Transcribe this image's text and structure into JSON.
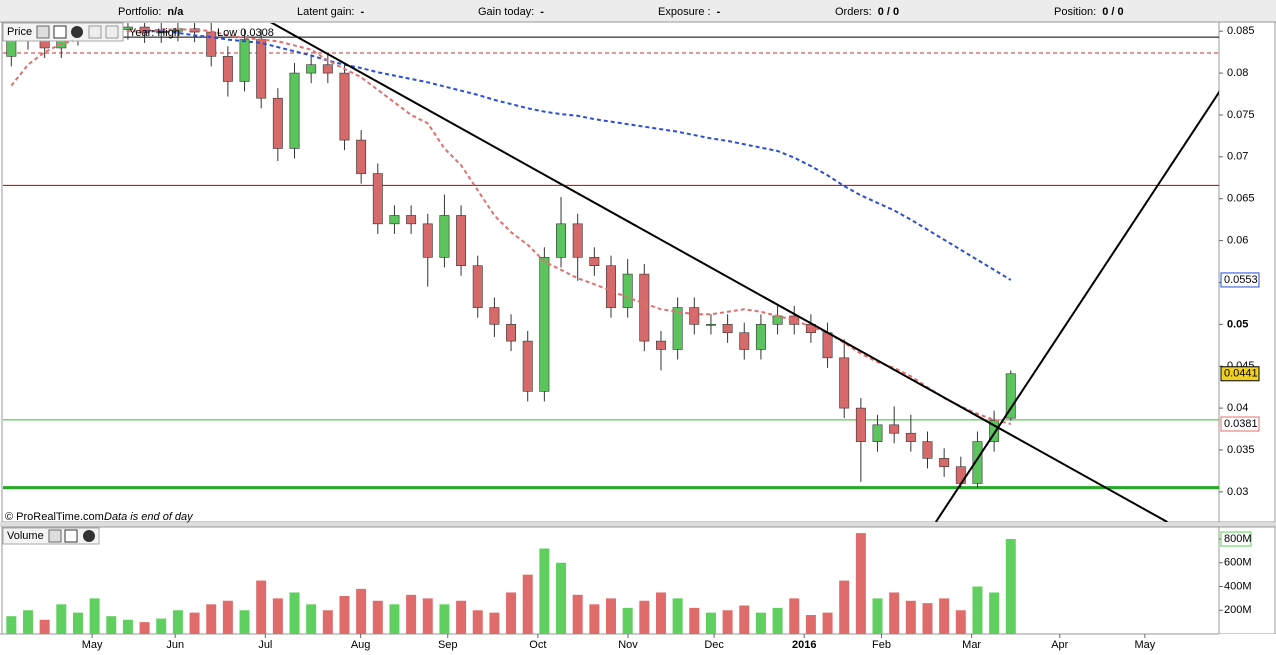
{
  "toolbar": {
    "items": [
      {
        "label": "Portfolio:",
        "value": "n/a"
      },
      {
        "label": "Latent gain:",
        "value": "-"
      },
      {
        "label": "Gain today:",
        "value": "-"
      },
      {
        "label": "Exposure :",
        "value": "-"
      },
      {
        "label": "Orders:",
        "value": "0 / 0"
      },
      {
        "label": "Position:",
        "value": "0 / 0"
      }
    ]
  },
  "price_panel": {
    "title": "Price",
    "legend": "Year: High",
    "legend_low": "Low 0.0308",
    "source": "© ProRealTime.com",
    "note": "Data is end of day"
  },
  "volume_panel": {
    "title": "Volume"
  },
  "chart_data": [
    {
      "type": "candlestick",
      "categories": [
        null,
        null,
        null,
        null,
        null,
        null,
        null,
        null,
        null,
        null,
        null,
        null,
        null,
        null,
        null,
        null,
        null,
        null,
        null,
        null,
        null,
        null,
        null,
        null,
        null,
        null,
        null,
        null,
        null,
        null,
        null,
        null,
        null,
        null,
        null,
        null,
        null,
        null,
        null,
        null,
        null,
        null,
        null,
        null,
        null,
        null,
        null,
        null,
        null,
        null,
        null,
        null,
        null,
        null,
        null,
        null,
        null,
        null,
        null,
        null,
        null
      ],
      "xlim": [
        0,
        73
      ],
      "xticks": [
        {
          "value": 5.35,
          "label": "May"
        },
        {
          "value": 10.34,
          "label": "Jun"
        },
        {
          "value": 15.75,
          "label": "Jul"
        },
        {
          "value": 21.47,
          "label": "Aug"
        },
        {
          "value": 26.7,
          "label": "Sep"
        },
        {
          "value": 32.11,
          "label": "Oct"
        },
        {
          "value": 37.52,
          "label": "Nov"
        },
        {
          "value": 42.69,
          "label": "Dec"
        },
        {
          "value": 48.1,
          "label": "2016"
        },
        {
          "value": 52.74,
          "label": "Feb"
        },
        {
          "value": 58.15,
          "label": "Mar"
        },
        {
          "value": 63.44,
          "label": "Apr"
        },
        {
          "value": 68.55,
          "label": "May"
        }
      ],
      "ylim": [
        0.0264,
        0.0861
      ],
      "yticks": [
        0.085,
        0.08,
        0.075,
        0.07,
        0.065,
        0.06,
        0.055,
        0.05,
        0.045,
        0.04,
        0.035,
        0.03
      ],
      "up_color": "#5cc45c",
      "down_color": "#d66a6a",
      "open": [
        0.082,
        0.084,
        0.0845,
        0.083,
        0.0845,
        0.085,
        0.085,
        0.0852,
        0.0855,
        0.0848,
        0.085,
        0.0853,
        0.0849,
        0.082,
        0.079,
        0.084,
        0.077,
        0.071,
        0.08,
        0.081,
        0.08,
        0.072,
        0.068,
        0.062,
        0.063,
        0.062,
        0.058,
        0.063,
        0.057,
        0.052,
        0.05,
        0.048,
        0.042,
        0.058,
        0.062,
        0.058,
        0.057,
        0.052,
        0.056,
        0.048,
        0.047,
        0.052,
        0.05,
        0.05,
        0.049,
        0.047,
        0.05,
        0.051,
        0.05,
        0.049,
        0.046,
        0.04,
        0.036,
        0.038,
        0.037,
        0.036,
        0.034,
        0.033,
        0.031,
        0.036,
        0.0388
      ],
      "high": [
        0.0852,
        0.0857,
        0.0857,
        0.0857,
        0.0862,
        0.0862,
        0.0864,
        0.0867,
        0.0867,
        0.0862,
        0.0865,
        0.0865,
        0.0861,
        0.0832,
        0.0852,
        0.0852,
        0.0782,
        0.0812,
        0.0822,
        0.0822,
        0.0812,
        0.0732,
        0.0692,
        0.0642,
        0.0642,
        0.0632,
        0.0655,
        0.0642,
        0.0582,
        0.0532,
        0.0512,
        0.0492,
        0.0592,
        0.0652,
        0.0632,
        0.0592,
        0.0582,
        0.0578,
        0.0572,
        0.0492,
        0.0532,
        0.0532,
        0.0512,
        0.0512,
        0.0502,
        0.0512,
        0.0522,
        0.0522,
        0.0512,
        0.0502,
        0.0482,
        0.0412,
        0.0392,
        0.0402,
        0.0392,
        0.0372,
        0.0352,
        0.0342,
        0.0372,
        0.0397,
        0.0445
      ],
      "low": [
        0.0808,
        0.0828,
        0.0818,
        0.0818,
        0.0833,
        0.0838,
        0.0838,
        0.084,
        0.0836,
        0.0836,
        0.0838,
        0.0837,
        0.0808,
        0.0772,
        0.0778,
        0.0758,
        0.0695,
        0.0698,
        0.0788,
        0.0788,
        0.0708,
        0.0668,
        0.0608,
        0.0608,
        0.0608,
        0.0545,
        0.0568,
        0.0558,
        0.0508,
        0.0485,
        0.0468,
        0.0408,
        0.0408,
        0.0568,
        0.0552,
        0.0558,
        0.0508,
        0.0508,
        0.0468,
        0.0445,
        0.0458,
        0.0488,
        0.0488,
        0.0478,
        0.0458,
        0.0458,
        0.0488,
        0.0488,
        0.0478,
        0.0448,
        0.0388,
        0.0312,
        0.0348,
        0.0358,
        0.0348,
        0.0328,
        0.0318,
        0.0305,
        0.0305,
        0.0348,
        0.0385
      ],
      "close": [
        0.084,
        0.0845,
        0.083,
        0.0845,
        0.085,
        0.085,
        0.0852,
        0.0855,
        0.0848,
        0.085,
        0.0853,
        0.0849,
        0.082,
        0.079,
        0.084,
        0.077,
        0.071,
        0.08,
        0.081,
        0.08,
        0.072,
        0.068,
        0.062,
        0.063,
        0.062,
        0.058,
        0.063,
        0.057,
        0.052,
        0.05,
        0.048,
        0.042,
        0.058,
        0.062,
        0.058,
        0.057,
        0.052,
        0.056,
        0.048,
        0.047,
        0.052,
        0.05,
        0.05,
        0.049,
        0.047,
        0.05,
        0.051,
        0.05,
        0.049,
        0.046,
        0.04,
        0.036,
        0.038,
        0.037,
        0.036,
        0.034,
        0.033,
        0.031,
        0.036,
        0.0385,
        0.0441
      ],
      "series": [
        {
          "color": "#2a4fd6",
          "values": [
            null,
            null,
            null,
            null,
            null,
            null,
            null,
            null,
            0.085,
            0.085,
            0.0848,
            0.0845,
            0.0843,
            0.084,
            0.0838,
            0.0836,
            0.0831,
            0.0826,
            0.0821,
            0.0815,
            0.081,
            0.0806,
            0.0801,
            0.0797,
            0.0793,
            0.0789,
            0.0784,
            0.0779,
            0.0774,
            0.0768,
            0.0763,
            0.0758,
            0.0754,
            0.0751,
            0.0749,
            0.0745,
            0.0742,
            0.0739,
            0.0736,
            0.0733,
            0.073,
            0.0726,
            0.0722,
            0.0719,
            0.0715,
            0.0711,
            0.0707,
            0.0699,
            0.0689,
            0.0678,
            0.0665,
            0.0654,
            0.0645,
            0.0636,
            0.0625,
            0.0613,
            0.0601,
            0.0589,
            0.0577,
            0.0565,
            0.0553
          ]
        },
        {
          "color": "#e07070",
          "values": [
            0.0785,
            0.081,
            0.0825,
            0.0835,
            0.084,
            0.0845,
            0.085,
            0.085,
            0.085,
            0.0852,
            0.0852,
            0.0852,
            0.085,
            0.0845,
            0.0842,
            0.084,
            0.0838,
            0.0833,
            0.0828,
            0.0815,
            0.0805,
            0.0795,
            0.078,
            0.0765,
            0.075,
            0.074,
            0.071,
            0.069,
            0.066,
            0.063,
            0.061,
            0.0595,
            0.0575,
            0.0565,
            0.0555,
            0.0548,
            0.054,
            0.0532,
            0.0525,
            0.0518,
            0.0515,
            0.0512,
            0.0512,
            0.0515,
            0.0518,
            0.0515,
            0.051,
            0.0505,
            0.0497,
            0.049,
            0.0478,
            0.0465,
            0.0455,
            0.0448,
            0.0438,
            0.0425,
            0.0412,
            0.0402,
            0.0393,
            0.0386,
            0.0381
          ]
        }
      ],
      "hlines": [
        {
          "value": 0.0843,
          "color": "#000000",
          "width": 1,
          "dashed": false
        },
        {
          "value": 0.0824,
          "color": "#c03030",
          "width": 1,
          "dashed": true
        },
        {
          "value": 0.0666,
          "color": "#c00000",
          "width": 1,
          "dashed": false
        },
        {
          "value": 0.0386,
          "color": "#33bb33",
          "width": 1,
          "dashed": false
        },
        {
          "value": 0.0305,
          "color": "#22aa22",
          "width": 3,
          "dashed": false
        }
      ],
      "trendlines": [
        {
          "x": [
            16.05,
            69.9
          ],
          "y": [
            0.0861,
            0.0264
          ]
        },
        {
          "x": [
            56.0,
            73.1
          ],
          "y": [
            0.0264,
            0.078
          ]
        }
      ]
    },
    {
      "type": "bar",
      "values": [
        150,
        200,
        120,
        250,
        180,
        300,
        150,
        120,
        100,
        130,
        200,
        180,
        250,
        280,
        200,
        450,
        300,
        350,
        250,
        200,
        320,
        380,
        280,
        250,
        330,
        300,
        250,
        280,
        200,
        180,
        350,
        500,
        720,
        600,
        330,
        250,
        300,
        220,
        280,
        350,
        300,
        220,
        180,
        200,
        240,
        180,
        220,
        300,
        160,
        180,
        450,
        850,
        300,
        350,
        280,
        260,
        300,
        200,
        400,
        350,
        800
      ],
      "ylim": [
        0,
        893
      ],
      "yticks": [
        {
          "value": 200,
          "label": "200M"
        },
        {
          "value": 400,
          "label": "400M"
        },
        {
          "value": 600,
          "label": "600M"
        },
        {
          "value": 800,
          "label": "800M"
        }
      ]
    }
  ]
}
